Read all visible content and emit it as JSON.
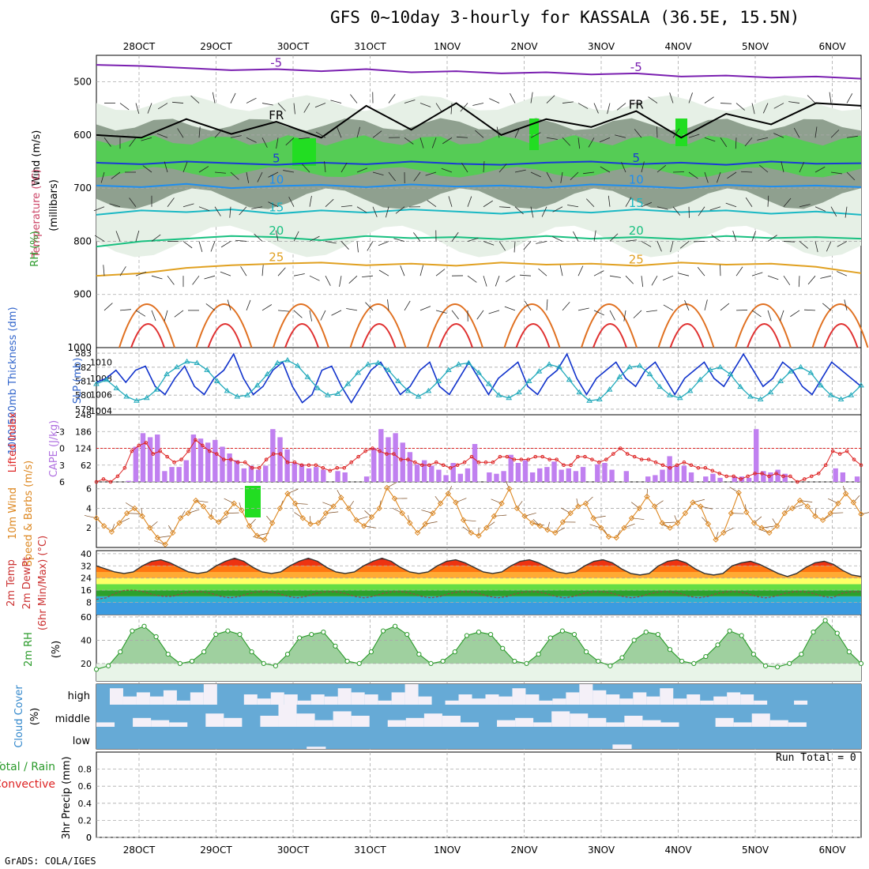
{
  "title": "GFS 0~10day 3-hourly for KASSALA (36.5E, 15.5N)",
  "credit": "GrADS: COLA/IGES",
  "run_total": "Run Total = 0",
  "colors": {
    "grid": "#aaaaaa",
    "rh_dark": "#8fa08f",
    "rh_light": "#e6f0e6",
    "rh_bright": "#22dd22",
    "slp": "#1133cc",
    "thick": "#22aabb",
    "cape": "#c080f0",
    "li": "#dd2222",
    "wind": "#dd8822",
    "rh2m": "#2a9a2a",
    "cloud": "#66aad6",
    "precip_total": "#2a9a2a",
    "precip_conv": "#dd2222"
  },
  "chart_data": {
    "type": "meteogram",
    "dates": [
      "28OCT",
      "29OCT",
      "30OCT",
      "31OCT",
      "1NOV",
      "2NOV",
      "3NOV",
      "4NOV",
      "5NOV",
      "6NOV"
    ],
    "panels": [
      {
        "id": "upper",
        "ylabels": [
          "Wind (m/s)",
          "Temperature (°C)",
          "RH (%)",
          "(millibars)"
        ],
        "yticks": [
          500,
          600,
          700,
          800,
          900,
          1000
        ],
        "ylim": [
          450,
          1000
        ],
        "isotherms": [
          {
            "value": -5,
            "label": "-5",
            "color": "#7a1fb0",
            "levels": [
              468,
              470,
              474,
              478,
              476,
              480,
              476,
              482,
              480,
              484,
              482,
              486,
              484,
              490,
              488,
              492,
              490,
              494
            ]
          },
          {
            "value": 0,
            "label": "FR",
            "color": "#000000",
            "levels": [
              600,
              605,
              570,
              598,
              575,
              605,
              545,
              590,
              540,
              600,
              570,
              585,
              555,
              605,
              560,
              580,
              540,
              545
            ]
          },
          {
            "value": 5,
            "label": "5",
            "color": "#1a3ad6",
            "levels": [
              652,
              655,
              650,
              653,
              656,
              652,
              655,
              650,
              654,
              656,
              652,
              650,
              655,
              652,
              656,
              650,
              654,
              653
            ]
          },
          {
            "value": 10,
            "label": "10",
            "color": "#1e8ef0",
            "levels": [
              695,
              698,
              692,
              700,
              696,
              694,
              698,
              693,
              697,
              695,
              699,
              693,
              696,
              700,
              694,
              697,
              695,
              698
            ]
          },
          {
            "value": 15,
            "label": "15",
            "color": "#1ab8c4",
            "levels": [
              750,
              742,
              745,
              740,
              748,
              742,
              746,
              740,
              744,
              748,
              742,
              746,
              740,
              745,
              742,
              748,
              744,
              750
            ]
          },
          {
            "value": 20,
            "label": "20",
            "color": "#18c080",
            "levels": [
              810,
              800,
              795,
              790,
              792,
              798,
              790,
              794,
              792,
              796,
              790,
              795,
              792,
              796,
              790,
              794,
              792,
              795
            ]
          },
          {
            "value": 25,
            "label": "25",
            "color": "#e0a020",
            "levels": [
              865,
              860,
              850,
              845,
              842,
              840,
              845,
              842,
              846,
              840,
              844,
              842,
              846,
              840,
              844,
              842,
              848,
              860
            ]
          }
        ]
      },
      {
        "id": "slp_thick",
        "ylabels": [
          "1000-500mb Thickness (dm)",
          "SLP (mb)"
        ],
        "yticks_left": [
          579,
          580,
          581,
          582,
          583
        ],
        "yticks_right": [
          1004,
          1006,
          1008,
          1010
        ],
        "series": [
          {
            "name": "SLP (mb)",
            "values": [
              1007.5,
              1008,
              1009,
              1007.5,
              1009,
              1009.5,
              1007,
              1006,
              1008,
              1009.5,
              1007,
              1006,
              1008,
              1009,
              1011,
              1008,
              1006,
              1007,
              1009,
              1010,
              1007,
              1005,
              1006,
              1009,
              1009.5,
              1007,
              1005,
              1007,
              1009,
              1010,
              1008,
              1006,
              1007,
              1009,
              1010,
              1007,
              1006,
              1008,
              1010,
              1008,
              1006,
              1008,
              1009,
              1010,
              1007,
              1006,
              1008,
              1009,
              1011,
              1008,
              1006,
              1008,
              1009,
              1010,
              1008,
              1007,
              1009,
              1010,
              1008,
              1006,
              1008,
              1009,
              1010,
              1008,
              1007,
              1009,
              1011,
              1009,
              1007,
              1008,
              1010,
              1009,
              1007,
              1006,
              1008,
              1010,
              1009,
              1008,
              1007
            ]
          },
          {
            "name": "1000-500mb Thickness (dm)",
            "values": [
              580.8,
              581.1,
              580.5,
              579.9,
              579.6,
              579.8,
              580.4,
              581.5,
              582.0,
              582.4,
              582.3,
              581.8,
              581.0,
              580.3,
              579.9,
              580.0,
              580.7,
              581.5,
              582.3,
              582.5,
              582.1,
              581.3,
              580.5,
              580.0,
              580.1,
              580.8,
              581.6,
              582.2,
              582.3,
              581.8,
              581.0,
              580.3,
              579.9,
              580.3,
              581.0,
              581.8,
              582.2,
              582.3,
              581.6,
              580.8,
              580.0,
              579.8,
              580.2,
              581.0,
              581.7,
              582.2,
              582.0,
              581.1,
              580.2,
              579.6,
              579.7,
              580.4,
              581.3,
              582.0,
              582.1,
              581.5,
              580.6,
              580.0,
              579.8,
              580.3,
              581.1,
              581.8,
              582.0,
              581.5,
              580.6,
              579.9,
              579.7,
              580.2,
              581.0,
              581.7,
              582.0,
              581.6,
              580.7,
              580.0,
              579.7,
              580.0,
              580.7
            ]
          }
        ]
      },
      {
        "id": "cape_li",
        "ylabels": [
          "Lifted Index",
          "CAPE (J/kg)"
        ],
        "yticks_left": [
          -3,
          0,
          3,
          6
        ],
        "yticks_right": [
          62,
          124,
          186,
          248
        ],
        "cape": [
          0,
          0,
          0,
          0,
          4,
          130,
          180,
          165,
          175,
          40,
          55,
          55,
          80,
          175,
          160,
          145,
          155,
          130,
          105,
          80,
          50,
          60,
          45,
          60,
          195,
          165,
          120,
          70,
          65,
          50,
          55,
          45,
          0,
          40,
          35,
          0,
          0,
          20,
          125,
          195,
          165,
          180,
          145,
          110,
          65,
          80,
          60,
          45,
          25,
          70,
          30,
          50,
          140,
          0,
          35,
          30,
          40,
          100,
          70,
          80,
          35,
          50,
          55,
          75,
          45,
          50,
          40,
          55,
          0,
          65,
          70,
          45,
          0,
          40,
          0,
          0,
          20,
          25,
          45,
          95,
          60,
          60,
          35,
          0,
          20,
          30,
          15,
          0,
          20,
          20,
          15,
          195,
          40,
          35,
          45,
          30,
          0,
          0,
          0,
          0,
          0,
          0,
          50,
          35,
          0,
          20
        ],
        "li": [
          6,
          5.5,
          6,
          5,
          3.5,
          0.5,
          -0.5,
          -1,
          1,
          0.5,
          1.5,
          2.5,
          2,
          0.5,
          -1.5,
          -0.5,
          0.5,
          1,
          2,
          2,
          2.5,
          2.5,
          3.5,
          3.5,
          2,
          1,
          1,
          2.5,
          2.5,
          3,
          3,
          3,
          3.5,
          4,
          3.5,
          3.5,
          2.5,
          1.5,
          0.5,
          0,
          0.5,
          1,
          1,
          2,
          2,
          2.5,
          3,
          3,
          2.5,
          3,
          3.5,
          3,
          2.5,
          1.5,
          2.5,
          2.5,
          2.5,
          1.5,
          1.5,
          2,
          2,
          2,
          1.5,
          1.5,
          2,
          2,
          3,
          3,
          1.5,
          1.5,
          2,
          2.5,
          2,
          1,
          0,
          1,
          1.5,
          2,
          2,
          2.5,
          3,
          3.5,
          3,
          2.5,
          3,
          3.5,
          3.5,
          4,
          4.5,
          5,
          5,
          5.5,
          5,
          4.5,
          4.5,
          5,
          4.5,
          5,
          5,
          6,
          5.5,
          5,
          4.5,
          3,
          0.5,
          1,
          0.5,
          2,
          3
        ]
      },
      {
        "id": "wind10m",
        "ylabels": [
          "10m Wind",
          "Speed & Barbs (m/s)"
        ],
        "yticks": [
          2,
          4,
          6
        ],
        "values": [
          3,
          2.2,
          1.6,
          2.5,
          3.5,
          4,
          3.2,
          2,
          1,
          0.3,
          1.5,
          3,
          3.5,
          4.8,
          4.2,
          3.1,
          2.6,
          3.5,
          4.5,
          3.8,
          2.2,
          1.2,
          0.8,
          2.5,
          4,
          5.5,
          4.5,
          3,
          2.4,
          2.5,
          3.5,
          4.2,
          5.1,
          4,
          2.8,
          2.2,
          3.1,
          4,
          6.1,
          5,
          3.5,
          2.5,
          1.5,
          2.4,
          3.5,
          4.5,
          5.5,
          4.6,
          2.8,
          1.5,
          1.2,
          2,
          3.2,
          4.5,
          6,
          4,
          3.2,
          2.5,
          2.2,
          1.8,
          1.5,
          2.6,
          3.5,
          4.2,
          4.5,
          3,
          2,
          1.1,
          1,
          2,
          3,
          4,
          5.2,
          4.2,
          2.5,
          2,
          2.5,
          3.5,
          4.6,
          4.2,
          2.4,
          0.8,
          1.5,
          3.5,
          5.6,
          3.6,
          2.5,
          2,
          1.5,
          2.2,
          3.5,
          4,
          4.8,
          4.2,
          3.2,
          2.8,
          3.5,
          4.5,
          5.5,
          4.6,
          3.4
        ]
      },
      {
        "id": "temp2m",
        "ylabels": [
          "2m Temp",
          "2m DewPt",
          "(6hr Min/Max) (°C)"
        ],
        "yticks": [
          8,
          16,
          24,
          32,
          40
        ],
        "temp": [
          32,
          30,
          28,
          27,
          28,
          32,
          35,
          36,
          34,
          31,
          28,
          27,
          28,
          32,
          35,
          37,
          35,
          31,
          28,
          27,
          28,
          32,
          35,
          37,
          35,
          31,
          28,
          27,
          28,
          32,
          35,
          37,
          35,
          31,
          28,
          27,
          28,
          32,
          35,
          36,
          34,
          31,
          28,
          27,
          28,
          32,
          35,
          36,
          34,
          31,
          28,
          27,
          28,
          32,
          35,
          36,
          34,
          30,
          27,
          26,
          27,
          32,
          35,
          36,
          34,
          30,
          27,
          26,
          27,
          32,
          34,
          35,
          33,
          30,
          27,
          25,
          27,
          31,
          34,
          35,
          33,
          29,
          26,
          25
        ],
        "dewpt": [
          10,
          11,
          14,
          16,
          16,
          15,
          13,
          12,
          12,
          14,
          15,
          15,
          14,
          12,
          11,
          12,
          14,
          15,
          15,
          14,
          12,
          11,
          12,
          14,
          15,
          15,
          14,
          12,
          11,
          12,
          14,
          15,
          15,
          14,
          12,
          11,
          12,
          14,
          15,
          15,
          14,
          12,
          11,
          12,
          14,
          15,
          15,
          14,
          12,
          11,
          12,
          14,
          15,
          15,
          14,
          12,
          11,
          12,
          14,
          15,
          15,
          14,
          12,
          11,
          12,
          14,
          15,
          15,
          14,
          12,
          11,
          12,
          14,
          15,
          15,
          14,
          12,
          11,
          14,
          15,
          15
        ]
      },
      {
        "id": "rh2m",
        "ylabels": [
          "2m RH",
          "(%)"
        ],
        "yticks": [
          20,
          40,
          60
        ],
        "values": [
          15,
          18,
          30,
          48,
          52,
          43,
          28,
          20,
          22,
          30,
          45,
          48,
          45,
          30,
          20,
          18,
          28,
          42,
          45,
          47,
          35,
          22,
          20,
          30,
          48,
          52,
          45,
          28,
          20,
          22,
          30,
          44,
          47,
          45,
          33,
          22,
          20,
          28,
          42,
          48,
          45,
          30,
          22,
          18,
          25,
          40,
          47,
          45,
          32,
          22,
          20,
          26,
          36,
          48,
          44,
          28,
          18,
          17,
          20,
          28,
          47,
          57,
          46,
          30,
          20
        ]
      },
      {
        "id": "cloud",
        "ylabels": [
          "Cloud Cover",
          "(%)"
        ],
        "layers": [
          "high",
          "middle",
          "low"
        ],
        "high": [
          0,
          80,
          40,
          60,
          40,
          70,
          20,
          60,
          100,
          0,
          0,
          50,
          30,
          60,
          50,
          20,
          50,
          40,
          80,
          60,
          50,
          20,
          60,
          100,
          40,
          0,
          20,
          50,
          30,
          50,
          40,
          80,
          50,
          20,
          30,
          60,
          100,
          70,
          50,
          30,
          60,
          40,
          80,
          30,
          50,
          20,
          40,
          60,
          50,
          20,
          0,
          0,
          20,
          0,
          0,
          0,
          0
        ],
        "middle": [
          20,
          0,
          40,
          30,
          20,
          0,
          60,
          40,
          0,
          50,
          100,
          60,
          30,
          70,
          50,
          0,
          30,
          40,
          60,
          50,
          20,
          0,
          30,
          40,
          20,
          70,
          60,
          40,
          20,
          50,
          30,
          20,
          0,
          0,
          40,
          20,
          60,
          30,
          20,
          0,
          0,
          0
        ],
        "low": [
          0,
          0,
          0,
          0,
          0,
          0,
          0,
          0,
          0,
          0,
          0,
          10,
          0,
          0,
          0,
          0,
          0,
          0,
          0,
          0,
          0,
          0,
          0,
          0,
          0,
          0,
          0,
          20,
          0,
          0,
          0,
          0,
          0,
          0,
          0,
          0,
          0,
          0,
          0,
          0
        ]
      },
      {
        "id": "precip",
        "ylabels": [
          "Total / Rain",
          "Convective",
          "3hr Precip (mm)"
        ],
        "yticks": [
          0,
          0.2,
          0.4,
          0.6,
          0.8
        ],
        "ylim": [
          0,
          1
        ],
        "values": []
      }
    ]
  }
}
